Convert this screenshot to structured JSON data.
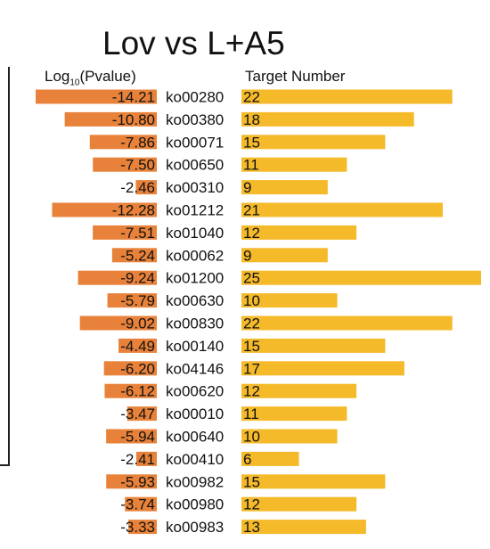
{
  "chart_data": {
    "type": "bar",
    "title": "Lov vs L+A5",
    "left_header": {
      "prefix": "Log",
      "subscript": "10",
      "suffix": "(Pvalue)"
    },
    "right_header": "Target Number",
    "categories": [
      "ko00280",
      "ko00380",
      "ko00071",
      "ko00650",
      "ko00310",
      "ko01212",
      "ko01040",
      "ko00062",
      "ko01200",
      "ko00630",
      "ko00830",
      "ko00140",
      "ko04146",
      "ko00620",
      "ko00010",
      "ko00640",
      "ko00410",
      "ko00982",
      "ko00980",
      "ko00983"
    ],
    "series": [
      {
        "name": "Log10(Pvalue)",
        "values": [
          -14.21,
          -10.8,
          -7.86,
          -7.5,
          -2.46,
          -12.28,
          -7.51,
          -5.24,
          -9.24,
          -5.79,
          -9.02,
          -4.49,
          -6.2,
          -6.12,
          -3.47,
          -5.94,
          -2.41,
          -5.93,
          -3.74,
          -3.33
        ],
        "labels": [
          "-14.21",
          "-10.80",
          "-7.86",
          "-7.50",
          "-2.46",
          "-12.28",
          "-7.51",
          "-5.24",
          "-9.24",
          "-5.79",
          "-9.02",
          "-4.49",
          "-6.20",
          "-6.12",
          "-3.47",
          "-5.94",
          "-2.41",
          "-5.93",
          "-3.74",
          "-3.33"
        ],
        "color": "#E8823A"
      },
      {
        "name": "Target Number",
        "values": [
          22,
          18,
          15,
          11,
          9,
          21,
          12,
          9,
          25,
          10,
          22,
          15,
          17,
          12,
          11,
          10,
          6,
          15,
          12,
          13
        ],
        "color": "#F5BA2A"
      }
    ]
  }
}
